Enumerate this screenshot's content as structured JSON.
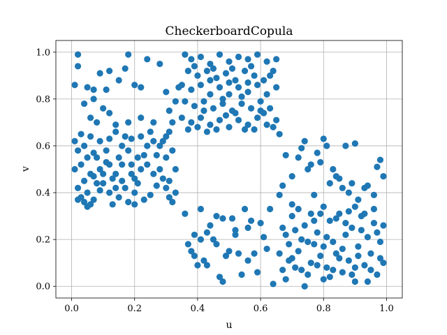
{
  "chart_data": {
    "type": "scatter",
    "title": "CheckerboardCopula",
    "xlabel": "u",
    "ylabel": "v",
    "xlim": [
      -0.05,
      1.05
    ],
    "ylim": [
      -0.05,
      1.05
    ],
    "xticks": [
      "0.0",
      "0.2",
      "0.4",
      "0.6",
      "0.8",
      "1.0"
    ],
    "yticks": [
      "0.0",
      "0.2",
      "0.4",
      "0.6",
      "0.8",
      "1.0"
    ],
    "grid": true,
    "marker_color": "#1f77b4",
    "series": [
      {
        "points": [
          [
            0.02,
            0.37
          ],
          [
            0.05,
            0.34
          ],
          [
            0.04,
            0.36
          ],
          [
            0.06,
            0.35
          ],
          [
            0.03,
            0.38
          ],
          [
            0.07,
            0.37
          ],
          [
            0.05,
            0.4
          ],
          [
            0.02,
            0.42
          ],
          [
            0.08,
            0.44
          ],
          [
            0.04,
            0.45
          ],
          [
            0.06,
            0.48
          ],
          [
            0.01,
            0.5
          ],
          [
            0.03,
            0.52
          ],
          [
            0.09,
            0.5
          ],
          [
            0.05,
            0.55
          ],
          [
            0.02,
            0.58
          ],
          [
            0.07,
            0.57
          ],
          [
            0.04,
            0.6
          ],
          [
            0.01,
            0.62
          ],
          [
            0.03,
            0.65
          ],
          [
            0.06,
            0.64
          ],
          [
            0.09,
            0.62
          ],
          [
            0.11,
            0.58
          ],
          [
            0.12,
            0.52
          ],
          [
            0.13,
            0.46
          ],
          [
            0.1,
            0.44
          ],
          [
            0.14,
            0.48
          ],
          [
            0.15,
            0.55
          ],
          [
            0.16,
            0.6
          ],
          [
            0.12,
            0.63
          ],
          [
            0.14,
            0.66
          ],
          [
            0.17,
            0.64
          ],
          [
            0.18,
            0.58
          ],
          [
            0.19,
            0.52
          ],
          [
            0.2,
            0.46
          ],
          [
            0.17,
            0.42
          ],
          [
            0.15,
            0.38
          ],
          [
            0.13,
            0.35
          ],
          [
            0.18,
            0.36
          ],
          [
            0.2,
            0.4
          ],
          [
            0.21,
            0.44
          ],
          [
            0.22,
            0.5
          ],
          [
            0.23,
            0.56
          ],
          [
            0.24,
            0.6
          ],
          [
            0.22,
            0.64
          ],
          [
            0.25,
            0.66
          ],
          [
            0.26,
            0.62
          ],
          [
            0.27,
            0.56
          ],
          [
            0.28,
            0.5
          ],
          [
            0.29,
            0.46
          ],
          [
            0.3,
            0.42
          ],
          [
            0.31,
            0.38
          ],
          [
            0.32,
            0.36
          ],
          [
            0.33,
            0.4
          ],
          [
            0.31,
            0.45
          ],
          [
            0.33,
            0.5
          ],
          [
            0.3,
            0.55
          ],
          [
            0.32,
            0.58
          ],
          [
            0.29,
            0.62
          ],
          [
            0.31,
            0.66
          ],
          [
            0.08,
            0.55
          ],
          [
            0.1,
            0.48
          ],
          [
            0.11,
            0.53
          ],
          [
            0.07,
            0.47
          ],
          [
            0.09,
            0.41
          ],
          [
            0.12,
            0.4
          ],
          [
            0.16,
            0.45
          ],
          [
            0.19,
            0.48
          ],
          [
            0.21,
            0.55
          ],
          [
            0.24,
            0.52
          ],
          [
            0.26,
            0.48
          ],
          [
            0.27,
            0.43
          ],
          [
            0.25,
            0.39
          ],
          [
            0.23,
            0.37
          ],
          [
            0.2,
            0.35
          ],
          [
            0.28,
            0.6
          ],
          [
            0.3,
            0.64
          ],
          [
            0.19,
            0.63
          ],
          [
            0.16,
            0.52
          ],
          [
            0.14,
            0.42
          ],
          [
            0.02,
            0.99
          ],
          [
            0.01,
            0.86
          ],
          [
            0.02,
            0.94
          ],
          [
            0.04,
            0.78
          ],
          [
            0.05,
            0.85
          ],
          [
            0.07,
            0.84
          ],
          [
            0.09,
            0.91
          ],
          [
            0.12,
            0.92
          ],
          [
            0.11,
            0.84
          ],
          [
            0.07,
            0.8
          ],
          [
            0.15,
            0.88
          ],
          [
            0.17,
            0.93
          ],
          [
            0.18,
            0.99
          ],
          [
            0.2,
            0.86
          ],
          [
            0.22,
            0.85
          ],
          [
            0.24,
            0.97
          ],
          [
            0.28,
            0.95
          ],
          [
            0.3,
            0.83
          ],
          [
            0.1,
            0.76
          ],
          [
            0.06,
            0.72
          ],
          [
            0.14,
            0.69
          ],
          [
            0.18,
            0.7
          ],
          [
            0.22,
            0.72
          ],
          [
            0.26,
            0.7
          ],
          [
            0.08,
            0.7
          ],
          [
            0.12,
            0.74
          ],
          [
            0.36,
            0.99
          ],
          [
            0.38,
            0.97
          ],
          [
            0.41,
            0.98
          ],
          [
            0.44,
            0.95
          ],
          [
            0.47,
            0.99
          ],
          [
            0.5,
            0.96
          ],
          [
            0.53,
            0.98
          ],
          [
            0.56,
            0.97
          ],
          [
            0.59,
            0.99
          ],
          [
            0.62,
            0.96
          ],
          [
            0.65,
            0.97
          ],
          [
            0.37,
            0.92
          ],
          [
            0.4,
            0.9
          ],
          [
            0.43,
            0.92
          ],
          [
            0.46,
            0.89
          ],
          [
            0.49,
            0.91
          ],
          [
            0.52,
            0.88
          ],
          [
            0.55,
            0.92
          ],
          [
            0.58,
            0.9
          ],
          [
            0.61,
            0.88
          ],
          [
            0.64,
            0.92
          ],
          [
            0.35,
            0.86
          ],
          [
            0.38,
            0.84
          ],
          [
            0.41,
            0.86
          ],
          [
            0.44,
            0.82
          ],
          [
            0.47,
            0.85
          ],
          [
            0.5,
            0.82
          ],
          [
            0.53,
            0.85
          ],
          [
            0.56,
            0.83
          ],
          [
            0.59,
            0.86
          ],
          [
            0.62,
            0.82
          ],
          [
            0.65,
            0.85
          ],
          [
            0.36,
            0.79
          ],
          [
            0.39,
            0.77
          ],
          [
            0.42,
            0.79
          ],
          [
            0.45,
            0.76
          ],
          [
            0.48,
            0.78
          ],
          [
            0.51,
            0.75
          ],
          [
            0.54,
            0.78
          ],
          [
            0.57,
            0.76
          ],
          [
            0.6,
            0.79
          ],
          [
            0.63,
            0.76
          ],
          [
            0.35,
            0.72
          ],
          [
            0.38,
            0.7
          ],
          [
            0.41,
            0.72
          ],
          [
            0.44,
            0.69
          ],
          [
            0.47,
            0.71
          ],
          [
            0.5,
            0.68
          ],
          [
            0.53,
            0.71
          ],
          [
            0.56,
            0.69
          ],
          [
            0.59,
            0.72
          ],
          [
            0.62,
            0.69
          ],
          [
            0.65,
            0.71
          ],
          [
            0.37,
            0.67
          ],
          [
            0.4,
            0.68
          ],
          [
            0.43,
            0.66
          ],
          [
            0.46,
            0.67
          ],
          [
            0.49,
            0.73
          ],
          [
            0.52,
            0.74
          ],
          [
            0.55,
            0.67
          ],
          [
            0.58,
            0.67
          ],
          [
            0.61,
            0.74
          ],
          [
            0.64,
            0.68
          ],
          [
            0.33,
            0.79
          ],
          [
            0.34,
            0.85
          ],
          [
            0.31,
            0.75
          ],
          [
            0.32,
            0.7
          ],
          [
            0.39,
            0.94
          ],
          [
            0.45,
            0.93
          ],
          [
            0.51,
            0.93
          ],
          [
            0.57,
            0.94
          ],
          [
            0.63,
            0.9
          ],
          [
            0.66,
            0.65
          ],
          [
            0.42,
            0.75
          ],
          [
            0.48,
            0.8
          ],
          [
            0.54,
            0.81
          ],
          [
            0.6,
            0.75
          ],
          [
            0.44,
            0.88
          ],
          [
            0.5,
            0.87
          ],
          [
            0.56,
            0.87
          ],
          [
            0.36,
            0.31
          ],
          [
            0.37,
            0.18
          ],
          [
            0.39,
            0.22
          ],
          [
            0.39,
            0.13
          ],
          [
            0.4,
            0.09
          ],
          [
            0.41,
            0.33
          ],
          [
            0.41,
            0.2
          ],
          [
            0.42,
            0.11
          ],
          [
            0.43,
            0.23
          ],
          [
            0.44,
            0.26
          ],
          [
            0.43,
            0.09
          ],
          [
            0.45,
            0.2
          ],
          [
            0.46,
            0.18
          ],
          [
            0.47,
            0.04
          ],
          [
            0.48,
            0.02
          ],
          [
            0.48,
            0.29
          ],
          [
            0.49,
            0.13
          ],
          [
            0.5,
            0.15
          ],
          [
            0.51,
            0.29
          ],
          [
            0.52,
            0.22
          ],
          [
            0.53,
            0.14
          ],
          [
            0.54,
            0.05
          ],
          [
            0.55,
            0.33
          ],
          [
            0.56,
            0.25
          ],
          [
            0.56,
            0.11
          ],
          [
            0.57,
            0.28
          ],
          [
            0.58,
            0.14
          ],
          [
            0.59,
            0.06
          ],
          [
            0.6,
            0.27
          ],
          [
            0.61,
            0.21
          ],
          [
            0.62,
            0.16
          ],
          [
            0.63,
            0.33
          ],
          [
            0.64,
            0.01
          ],
          [
            0.38,
            0.15
          ],
          [
            0.46,
            0.3
          ],
          [
            0.52,
            0.24
          ],
          [
            0.66,
            0.39
          ],
          [
            0.67,
            0.43
          ],
          [
            0.68,
            0.56
          ],
          [
            0.7,
            0.47
          ],
          [
            0.72,
            0.55
          ],
          [
            0.73,
            0.59
          ],
          [
            0.74,
            0.62
          ],
          [
            0.75,
            0.5
          ],
          [
            0.76,
            0.52
          ],
          [
            0.77,
            0.39
          ],
          [
            0.78,
            0.57
          ],
          [
            0.79,
            0.53
          ],
          [
            0.8,
            0.63
          ],
          [
            0.81,
            0.6
          ],
          [
            0.82,
            0.44
          ],
          [
            0.83,
            0.5
          ],
          [
            0.84,
            0.47
          ],
          [
            0.85,
            0.46
          ],
          [
            0.86,
            0.42
          ],
          [
            0.87,
            0.6
          ],
          [
            0.88,
            0.4
          ],
          [
            0.89,
            0.44
          ],
          [
            0.9,
            0.61
          ],
          [
            0.91,
            0.37
          ],
          [
            0.93,
            0.42
          ],
          [
            0.94,
            0.43
          ],
          [
            0.96,
            0.39
          ],
          [
            0.97,
            0.51
          ],
          [
            0.98,
            0.54
          ],
          [
            0.99,
            0.47
          ],
          [
            0.67,
            0.25
          ],
          [
            0.68,
            0.22
          ],
          [
            0.69,
            0.18
          ],
          [
            0.7,
            0.12
          ],
          [
            0.71,
            0.08
          ],
          [
            0.72,
            0.15
          ],
          [
            0.73,
            0.2
          ],
          [
            0.74,
            0.26
          ],
          [
            0.75,
            0.05
          ],
          [
            0.76,
            0.1
          ],
          [
            0.77,
            0.18
          ],
          [
            0.78,
            0.23
          ],
          [
            0.79,
            0.13
          ],
          [
            0.8,
            0.03
          ],
          [
            0.81,
            0.08
          ],
          [
            0.82,
            0.28
          ],
          [
            0.83,
            0.19
          ],
          [
            0.84,
            0.14
          ],
          [
            0.85,
            0.31
          ],
          [
            0.86,
            0.06
          ],
          [
            0.87,
            0.22
          ],
          [
            0.88,
            0.11
          ],
          [
            0.89,
            0.25
          ],
          [
            0.9,
            0.02
          ],
          [
            0.91,
            0.17
          ],
          [
            0.92,
            0.3
          ],
          [
            0.93,
            0.09
          ],
          [
            0.94,
            0.21
          ],
          [
            0.95,
            0.14
          ],
          [
            0.96,
            0.27
          ],
          [
            0.97,
            0.05
          ],
          [
            0.98,
            0.19
          ],
          [
            0.99,
            0.1
          ],
          [
            0.68,
            0.03
          ],
          [
            0.7,
            0.3
          ],
          [
            0.72,
            0.33
          ],
          [
            0.74,
            0.0
          ],
          [
            0.76,
            0.31
          ],
          [
            0.78,
            0.09
          ],
          [
            0.8,
            0.17
          ],
          [
            0.82,
            0.04
          ],
          [
            0.84,
            0.29
          ],
          [
            0.86,
            0.16
          ],
          [
            0.88,
            0.32
          ],
          [
            0.9,
            0.08
          ],
          [
            0.92,
            0.24
          ],
          [
            0.94,
            0.02
          ],
          [
            0.96,
            0.33
          ],
          [
            0.98,
            0.12
          ],
          [
            0.69,
            0.11
          ],
          [
            0.73,
            0.07
          ],
          [
            0.77,
            0.28
          ],
          [
            0.81,
            0.21
          ],
          [
            0.85,
            0.12
          ],
          [
            0.89,
            0.05
          ],
          [
            0.93,
            0.31
          ],
          [
            0.97,
            0.23
          ],
          [
            0.71,
            0.24
          ],
          [
            0.75,
            0.19
          ],
          [
            0.79,
            0.31
          ],
          [
            0.83,
            0.07
          ],
          [
            0.87,
            0.27
          ],
          [
            0.91,
            0.13
          ],
          [
            0.95,
            0.07
          ],
          [
            0.99,
            0.26
          ],
          [
            0.7,
            0.35
          ],
          [
            0.8,
            0.34
          ],
          [
            0.9,
            0.34
          ],
          [
            0.66,
            0.14
          ],
          [
            0.67,
            0.07
          ]
        ]
      }
    ]
  }
}
